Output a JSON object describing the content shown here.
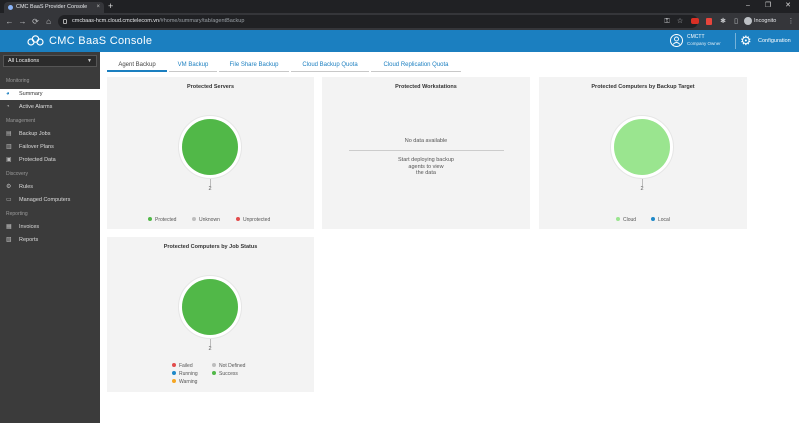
{
  "browser": {
    "tab_title": "CMC BaaS Provider Console",
    "tab_close": "×",
    "new_tab": "+",
    "url_host": "cmcbaas-hcm.cloud.cmctelecom.vn",
    "url_path": "/#home/summary/tab/agentBackup",
    "profile": "Incognito",
    "nav": {
      "back": "←",
      "forward": "→",
      "reload": "⟳",
      "home": "⌂"
    },
    "window": {
      "minimize": "–",
      "maximize": "❐",
      "close": "✕"
    }
  },
  "header": {
    "brand": "CMC  BaaS  Console",
    "user_name": "CMCTT",
    "user_role": "Company Owner",
    "config_label": "Configuration",
    "colors": {
      "header_bg": "#1b7fc0"
    }
  },
  "sidebar": {
    "location": "All Locations",
    "sections": [
      {
        "title": "Monitoring",
        "items": [
          {
            "label": "Summary",
            "icon": "pie-chart-icon",
            "active": true
          },
          {
            "label": "Active Alarms",
            "icon": "alarm-icon",
            "active": false
          }
        ]
      },
      {
        "title": "Management",
        "items": [
          {
            "label": "Backup Jobs",
            "icon": "backup-icon",
            "active": false
          },
          {
            "label": "Failover Plans",
            "icon": "failover-icon",
            "active": false
          },
          {
            "label": "Protected Data",
            "icon": "database-icon",
            "active": false
          }
        ]
      },
      {
        "title": "Discovery",
        "items": [
          {
            "label": "Rules",
            "icon": "rules-icon",
            "active": false
          },
          {
            "label": "Managed Computers",
            "icon": "computer-icon",
            "active": false
          }
        ]
      },
      {
        "title": "Reporting",
        "items": [
          {
            "label": "Invoices",
            "icon": "invoice-icon",
            "active": false
          },
          {
            "label": "Reports",
            "icon": "report-icon",
            "active": false
          }
        ]
      }
    ]
  },
  "tabs": [
    {
      "label": "Agent Backup",
      "active": true
    },
    {
      "label": "VM Backup",
      "active": false
    },
    {
      "label": "File Share Backup",
      "active": false
    },
    {
      "label": "Cloud Backup Quota",
      "active": false
    },
    {
      "label": "Cloud Replication Quota",
      "active": false
    }
  ],
  "cards": {
    "protected_servers": {
      "title": "Protected Servers",
      "count": "2",
      "fill_color": "#51b848",
      "legend": [
        {
          "label": "Protected",
          "color": "#51b848"
        },
        {
          "label": "Unknown",
          "color": "#bdbdbd"
        },
        {
          "label": "Unprotected",
          "color": "#e24c4c"
        }
      ]
    },
    "protected_workstations": {
      "title": "Protected Workstations",
      "no_data": "No data available",
      "message": [
        "Start deploying backup",
        "agents to view",
        "the data"
      ]
    },
    "by_target": {
      "title": "Protected Computers by Backup Target",
      "count": "2",
      "fill_color": "#9ae58f",
      "legend": [
        {
          "label": "Cloud",
          "color": "#9ae58f"
        },
        {
          "label": "Local",
          "color": "#1e88c8"
        }
      ]
    },
    "by_job_status": {
      "title": "Protected Computers by Job Status",
      "count": "2",
      "fill_color": "#51b848",
      "legend": [
        {
          "label": "Failed",
          "color": "#e24c4c"
        },
        {
          "label": "Not Defined",
          "color": "#bdbdbd"
        },
        {
          "label": "Running",
          "color": "#1e88c8"
        },
        {
          "label": "Success",
          "color": "#51b848"
        },
        {
          "label": "Warning",
          "color": "#f5a623"
        }
      ]
    }
  }
}
